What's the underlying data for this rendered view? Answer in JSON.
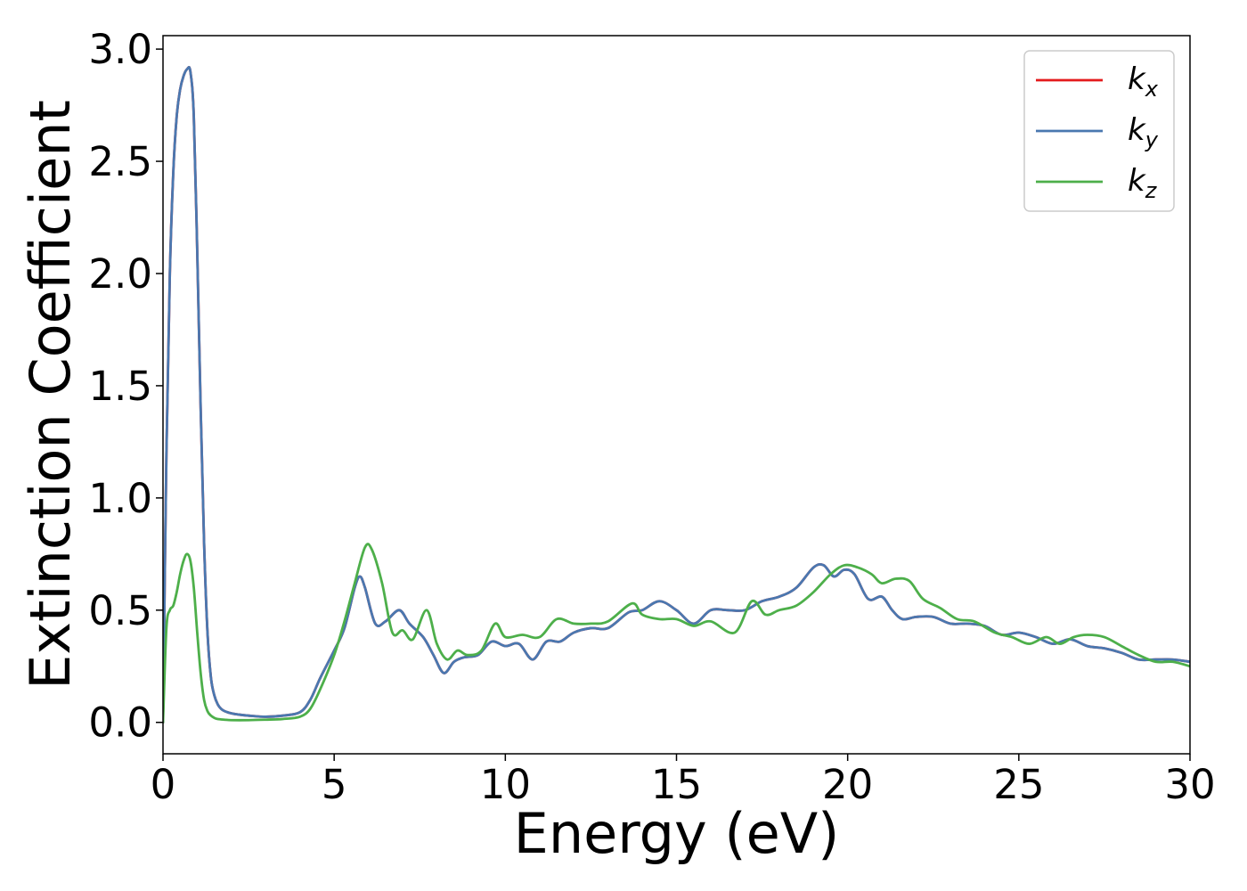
{
  "chart_data": {
    "type": "line",
    "xlabel": "Energy (eV)",
    "ylabel": "Extinction Coefficient",
    "xlim": [
      0,
      30
    ],
    "ylim": [
      -0.14,
      3.06
    ],
    "xticks": [
      0,
      5,
      10,
      15,
      20,
      25,
      30
    ],
    "yticks": [
      0.0,
      0.5,
      1.0,
      1.5,
      2.0,
      2.5,
      3.0
    ],
    "xtick_labels": [
      "0",
      "5",
      "10",
      "15",
      "20",
      "25",
      "30"
    ],
    "ytick_labels": [
      "0.0",
      "0.5",
      "1.0",
      "1.5",
      "2.0",
      "2.5",
      "3.0"
    ],
    "grid": false,
    "legend_position": "top-right",
    "series": [
      {
        "name": "k_x",
        "label_base": "k",
        "label_sub": "x",
        "color": "#e41a1c",
        "x": [
          0,
          0.1,
          0.2,
          0.3,
          0.4,
          0.5,
          0.6,
          0.7,
          0.8,
          0.9,
          1.0,
          1.1,
          1.2,
          1.3,
          1.4,
          1.5,
          1.6,
          1.7,
          1.8,
          2.0,
          2.2,
          2.5,
          3.0,
          3.5,
          4.0,
          4.3,
          4.6,
          5.0,
          5.3,
          5.6,
          5.75,
          5.9,
          6.2,
          6.5,
          6.9,
          7.2,
          7.6,
          7.9,
          8.2,
          8.5,
          8.8,
          9.2,
          9.6,
          10.0,
          10.4,
          10.8,
          11.2,
          11.6,
          12.0,
          12.5,
          13.0,
          13.6,
          14.0,
          14.5,
          15.0,
          15.5,
          16.0,
          16.5,
          17.0,
          17.5,
          18.0,
          18.5,
          19.0,
          19.3,
          19.6,
          19.9,
          20.2,
          20.6,
          21.0,
          21.3,
          21.6,
          22.0,
          22.5,
          23.0,
          23.5,
          24.0,
          24.5,
          25.0,
          25.5,
          26.0,
          26.5,
          27.0,
          27.5,
          28.0,
          28.5,
          29.0,
          29.5,
          30.0
        ],
        "y": [
          0,
          1.2,
          2.0,
          2.45,
          2.7,
          2.82,
          2.88,
          2.91,
          2.9,
          2.7,
          2.1,
          1.4,
          0.8,
          0.4,
          0.2,
          0.12,
          0.08,
          0.06,
          0.05,
          0.04,
          0.035,
          0.03,
          0.025,
          0.03,
          0.045,
          0.1,
          0.2,
          0.32,
          0.42,
          0.6,
          0.65,
          0.6,
          0.44,
          0.45,
          0.5,
          0.44,
          0.38,
          0.3,
          0.22,
          0.27,
          0.29,
          0.3,
          0.36,
          0.34,
          0.35,
          0.28,
          0.36,
          0.36,
          0.4,
          0.42,
          0.42,
          0.49,
          0.5,
          0.54,
          0.5,
          0.44,
          0.5,
          0.5,
          0.5,
          0.54,
          0.56,
          0.6,
          0.69,
          0.7,
          0.65,
          0.68,
          0.66,
          0.55,
          0.56,
          0.5,
          0.46,
          0.47,
          0.47,
          0.44,
          0.44,
          0.43,
          0.39,
          0.4,
          0.38,
          0.35,
          0.37,
          0.34,
          0.33,
          0.31,
          0.28,
          0.28,
          0.28,
          0.27
        ]
      },
      {
        "name": "k_y",
        "label_base": "k",
        "label_sub": "y",
        "color": "#4a78b0",
        "x": [
          0,
          0.1,
          0.2,
          0.3,
          0.4,
          0.5,
          0.6,
          0.7,
          0.8,
          0.9,
          1.0,
          1.1,
          1.2,
          1.3,
          1.4,
          1.5,
          1.6,
          1.7,
          1.8,
          2.0,
          2.2,
          2.5,
          3.0,
          3.5,
          4.0,
          4.3,
          4.6,
          5.0,
          5.3,
          5.6,
          5.75,
          5.9,
          6.2,
          6.5,
          6.9,
          7.2,
          7.6,
          7.9,
          8.2,
          8.5,
          8.8,
          9.2,
          9.6,
          10.0,
          10.4,
          10.8,
          11.2,
          11.6,
          12.0,
          12.5,
          13.0,
          13.6,
          14.0,
          14.5,
          15.0,
          15.5,
          16.0,
          16.5,
          17.0,
          17.5,
          18.0,
          18.5,
          19.0,
          19.3,
          19.6,
          19.9,
          20.2,
          20.6,
          21.0,
          21.3,
          21.6,
          22.0,
          22.5,
          23.0,
          23.5,
          24.0,
          24.5,
          25.0,
          25.5,
          26.0,
          26.5,
          27.0,
          27.5,
          28.0,
          28.5,
          29.0,
          29.5,
          30.0
        ],
        "y": [
          0,
          1.2,
          2.0,
          2.45,
          2.7,
          2.82,
          2.88,
          2.91,
          2.9,
          2.7,
          2.1,
          1.4,
          0.8,
          0.4,
          0.2,
          0.12,
          0.08,
          0.06,
          0.05,
          0.04,
          0.035,
          0.03,
          0.025,
          0.03,
          0.045,
          0.1,
          0.2,
          0.32,
          0.42,
          0.6,
          0.65,
          0.6,
          0.44,
          0.45,
          0.5,
          0.44,
          0.38,
          0.3,
          0.22,
          0.27,
          0.29,
          0.3,
          0.36,
          0.34,
          0.35,
          0.28,
          0.36,
          0.36,
          0.4,
          0.42,
          0.42,
          0.49,
          0.5,
          0.54,
          0.5,
          0.44,
          0.5,
          0.5,
          0.5,
          0.54,
          0.56,
          0.6,
          0.69,
          0.7,
          0.65,
          0.68,
          0.66,
          0.55,
          0.56,
          0.5,
          0.46,
          0.47,
          0.47,
          0.44,
          0.44,
          0.43,
          0.39,
          0.4,
          0.38,
          0.35,
          0.37,
          0.34,
          0.33,
          0.31,
          0.28,
          0.28,
          0.28,
          0.27
        ]
      },
      {
        "name": "k_z",
        "label_base": "k",
        "label_sub": "z",
        "color": "#4daf4a",
        "x": [
          0,
          0.1,
          0.2,
          0.3,
          0.4,
          0.5,
          0.6,
          0.7,
          0.8,
          0.9,
          1.0,
          1.1,
          1.2,
          1.3,
          1.4,
          1.5,
          1.6,
          1.8,
          2.0,
          2.5,
          3.0,
          3.5,
          4.0,
          4.3,
          4.6,
          5.0,
          5.3,
          5.6,
          5.9,
          6.1,
          6.4,
          6.7,
          7.0,
          7.3,
          7.7,
          8.0,
          8.3,
          8.6,
          8.9,
          9.3,
          9.7,
          10.0,
          10.5,
          11.0,
          11.5,
          12.0,
          12.5,
          13.0,
          13.7,
          14.0,
          14.5,
          15.0,
          15.5,
          16.0,
          16.7,
          17.2,
          17.6,
          18.0,
          18.5,
          19.0,
          19.5,
          19.9,
          20.3,
          20.7,
          21.0,
          21.4,
          21.8,
          22.2,
          22.7,
          23.2,
          23.7,
          24.3,
          24.8,
          25.3,
          25.8,
          26.2,
          26.6,
          27.0,
          27.5,
          28.0,
          28.5,
          29.0,
          29.5,
          30.0
        ],
        "y": [
          0,
          0.42,
          0.5,
          0.52,
          0.58,
          0.66,
          0.72,
          0.75,
          0.72,
          0.6,
          0.4,
          0.22,
          0.1,
          0.05,
          0.03,
          0.02,
          0.015,
          0.012,
          0.01,
          0.01,
          0.012,
          0.015,
          0.025,
          0.06,
          0.15,
          0.3,
          0.45,
          0.62,
          0.78,
          0.77,
          0.62,
          0.4,
          0.41,
          0.37,
          0.5,
          0.35,
          0.28,
          0.32,
          0.3,
          0.32,
          0.44,
          0.38,
          0.39,
          0.38,
          0.46,
          0.44,
          0.44,
          0.45,
          0.53,
          0.48,
          0.46,
          0.46,
          0.43,
          0.45,
          0.4,
          0.54,
          0.48,
          0.5,
          0.52,
          0.58,
          0.66,
          0.7,
          0.69,
          0.66,
          0.62,
          0.64,
          0.63,
          0.55,
          0.51,
          0.46,
          0.45,
          0.4,
          0.38,
          0.35,
          0.38,
          0.35,
          0.38,
          0.39,
          0.38,
          0.34,
          0.3,
          0.27,
          0.27,
          0.25
        ]
      }
    ]
  }
}
